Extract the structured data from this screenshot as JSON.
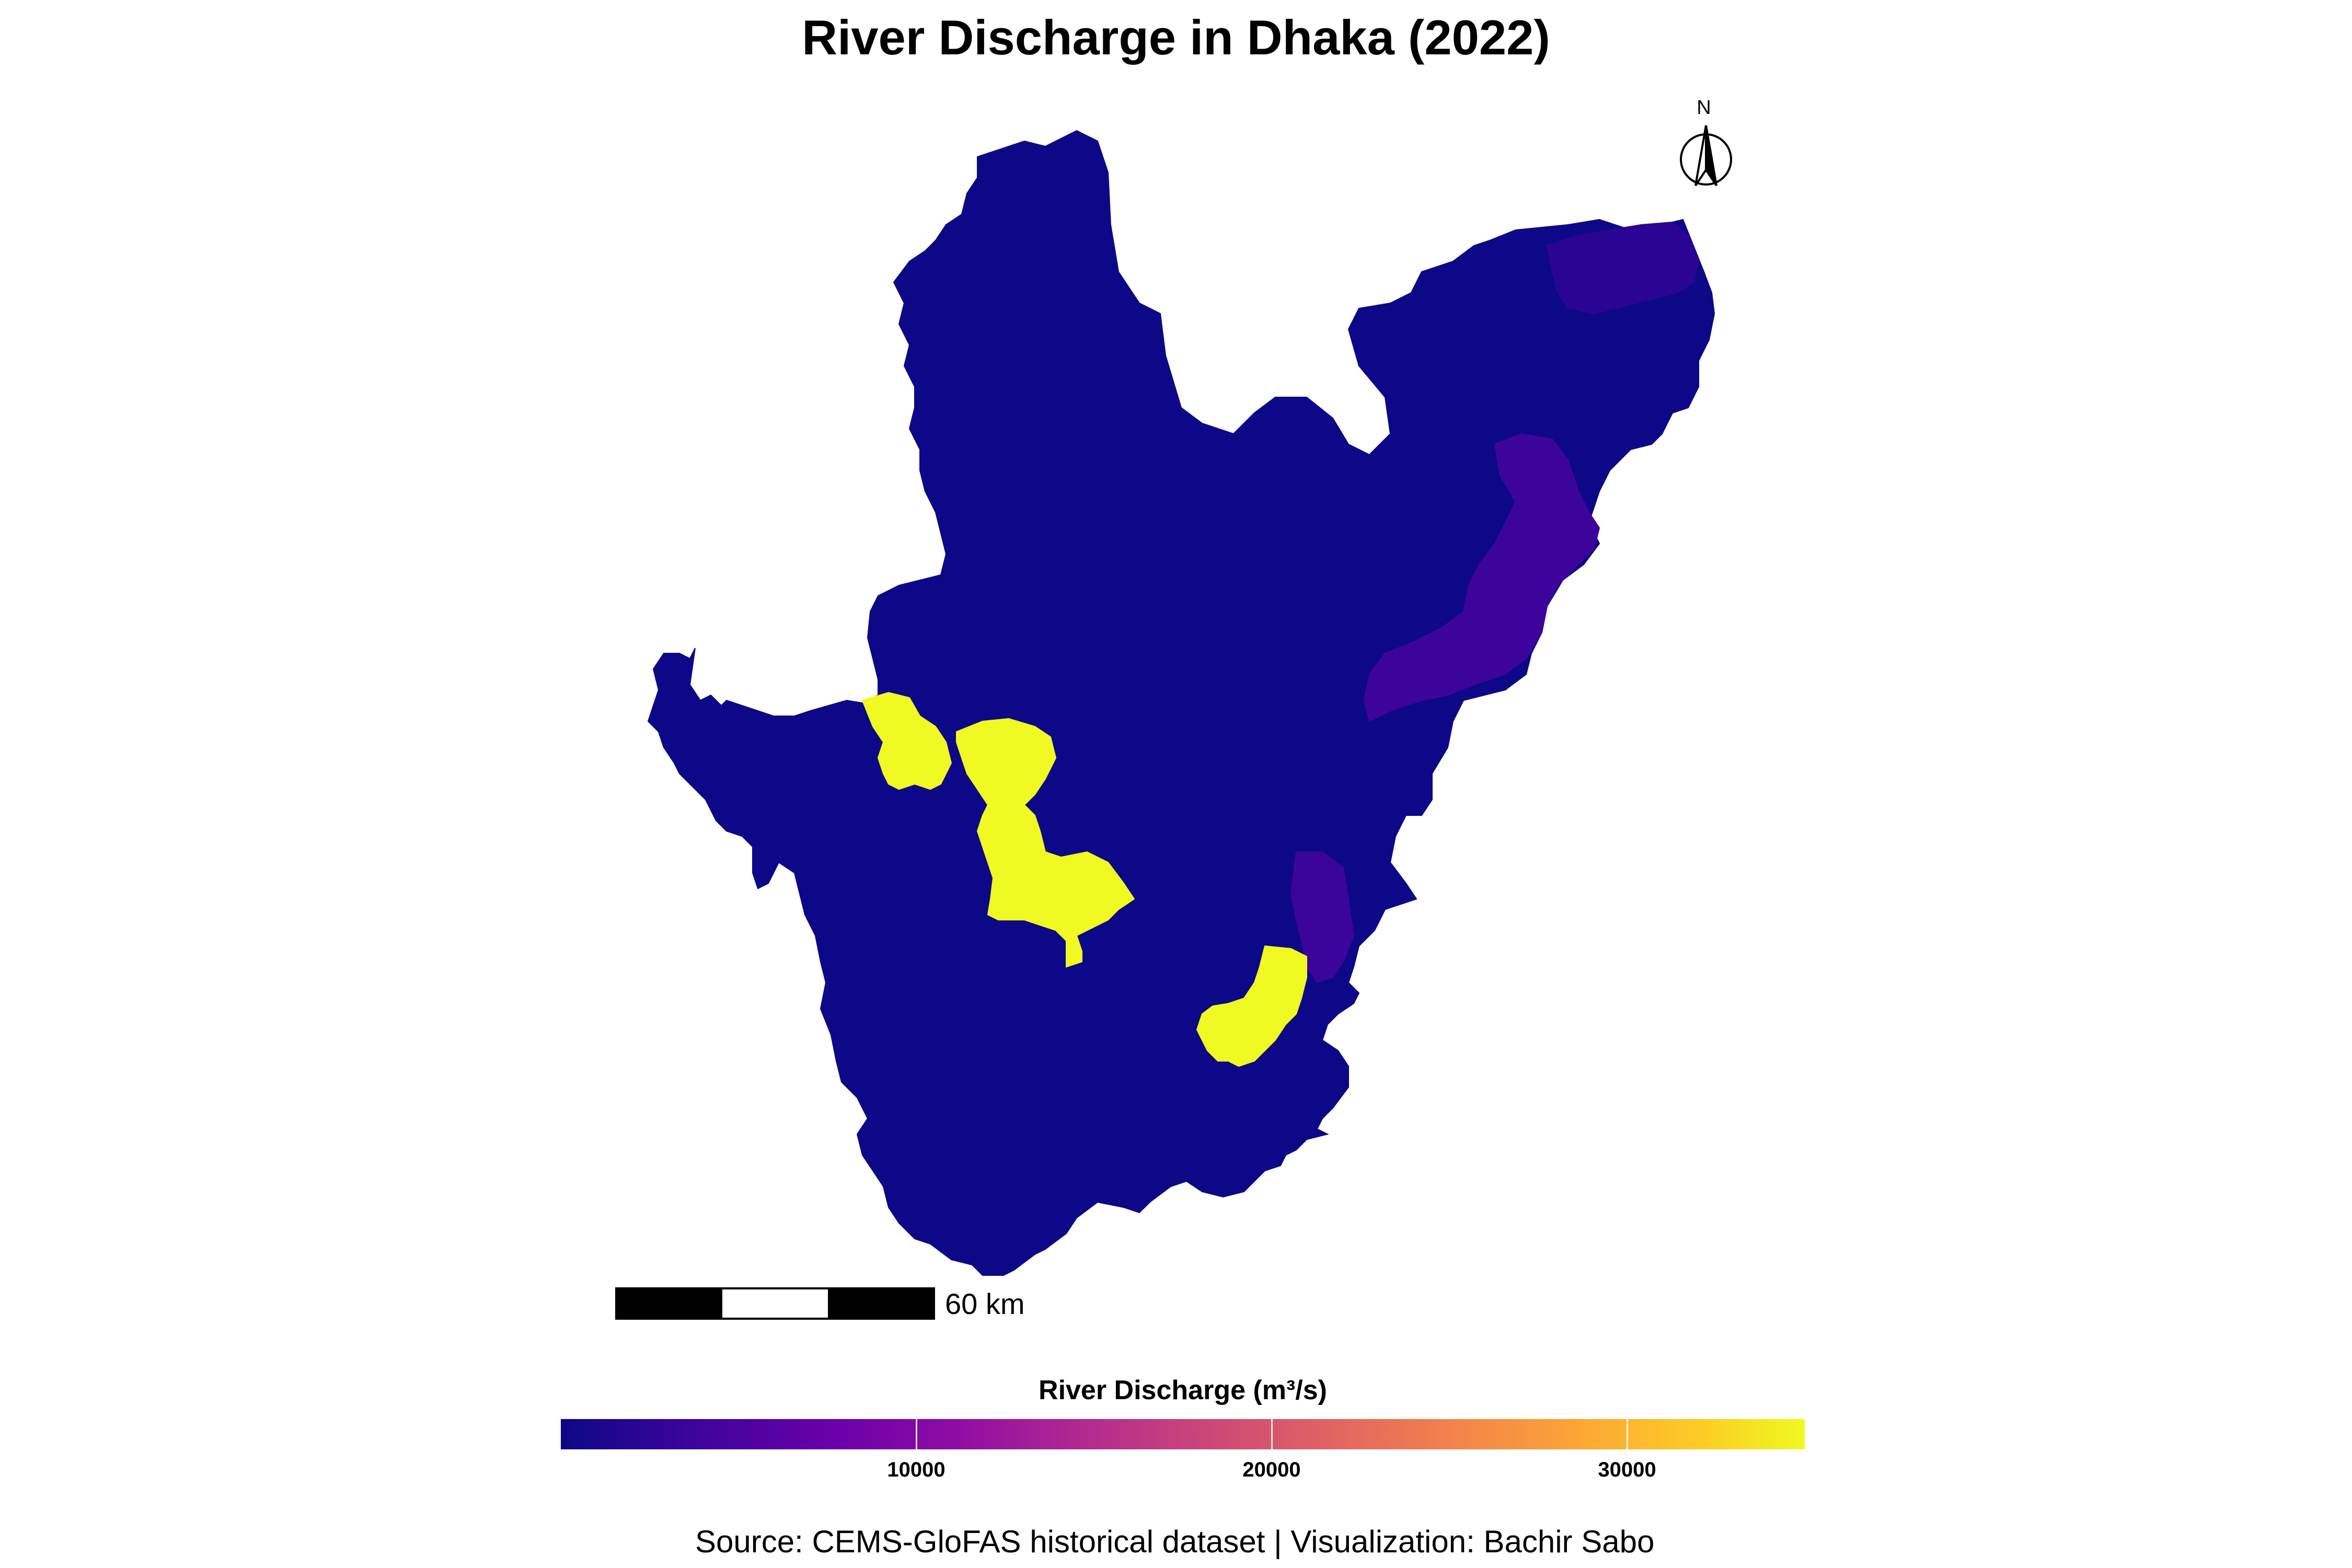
{
  "title": "River Discharge in Dhaka (2022)",
  "north_arrow": {
    "label": "N"
  },
  "scale_bar": {
    "label": "60 km"
  },
  "legend": {
    "title": "River Discharge (m³/s)",
    "palette": [
      "#0d0887",
      "#6a00a8",
      "#b12a90",
      "#e16462",
      "#fca636",
      "#f0f921"
    ],
    "min": 0,
    "max": 35000,
    "ticks": [
      {
        "value": 10000,
        "label": "10000"
      },
      {
        "value": 20000,
        "label": "20000"
      },
      {
        "value": 30000,
        "label": "30000"
      }
    ]
  },
  "regions": {
    "base": {
      "color": "#0d0887"
    },
    "northeast_strip": {
      "color": "#2a0593"
    },
    "east_strip": {
      "color": "#3d049b"
    },
    "south_channel": {
      "color": "#3b049a"
    },
    "high_discharge": {
      "color": "#f0f921"
    }
  },
  "caption": "Source: CEMS-GloFAS historical dataset | Visualization: Bachir Sabo"
}
